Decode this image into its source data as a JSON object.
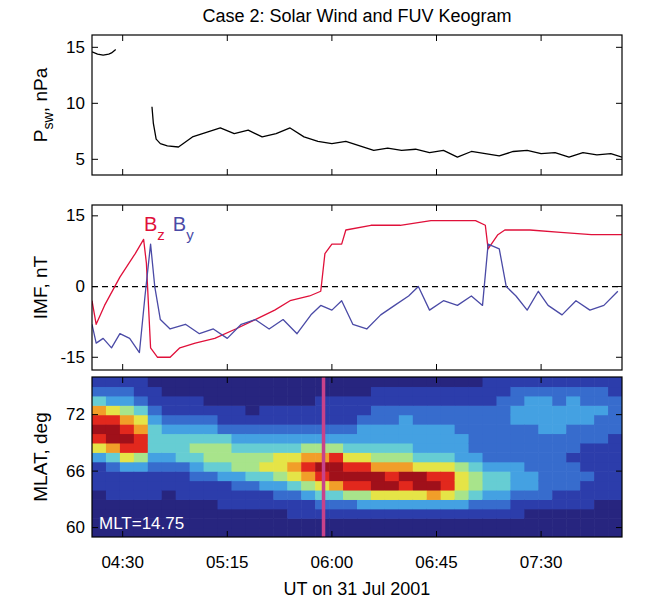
{
  "chart_data": [
    {
      "type": "line",
      "title": "Case 2: Solar Wind and FUV Keogram",
      "ylabel": "Psw, nPa",
      "xlim": [
        4.28,
        8.08
      ],
      "ylim": [
        3.6,
        16.1
      ],
      "xticks": [
        4.5,
        5.25,
        6,
        6.75,
        7.5
      ],
      "yticks": [
        5,
        10,
        15
      ],
      "tick_labels": "y",
      "series": [
        {
          "color": "#000000",
          "x": [
            4.28,
            4.32,
            4.36,
            4.4,
            4.42,
            4.45,
            4.6,
            4.71,
            4.72,
            4.74,
            4.77,
            4.82,
            4.9,
            5.0,
            5.1,
            5.2,
            5.3,
            5.4,
            5.5,
            5.6,
            5.7,
            5.8,
            5.9,
            6.0,
            6.1,
            6.2,
            6.3,
            6.4,
            6.5,
            6.6,
            6.7,
            6.8,
            6.9,
            7.0,
            7.1,
            7.2,
            7.3,
            7.4,
            7.5,
            7.6,
            7.7,
            7.8,
            7.9,
            8.0,
            8.08
          ],
          "values": [
            14.6,
            14.4,
            14.3,
            14.4,
            14.5,
            14.8,
            null,
            9.7,
            8.2,
            6.8,
            6.4,
            6.2,
            6.1,
            7.0,
            7.4,
            7.8,
            7.3,
            7.6,
            7.0,
            7.3,
            7.8,
            7.0,
            6.6,
            6.4,
            6.6,
            6.2,
            5.8,
            6.0,
            5.8,
            5.9,
            5.6,
            5.8,
            5.2,
            5.7,
            5.5,
            5.3,
            5.7,
            5.8,
            5.5,
            5.6,
            5.2,
            5.6,
            5.4,
            5.5,
            5.2
          ]
        }
      ]
    },
    {
      "type": "line",
      "ylabel": "IMF, nT",
      "xlim": [
        4.28,
        8.08
      ],
      "ylim": [
        -17.7,
        17.3
      ],
      "xticks": [
        4.5,
        5.25,
        6,
        6.75,
        7.5
      ],
      "yticks": [
        -15,
        0,
        15
      ],
      "tick_labels": "y",
      "hline": 0,
      "legend": "upper left",
      "series": [
        {
          "name": "Bz",
          "color": "#e0103a",
          "x": [
            4.28,
            4.31,
            4.37,
            4.48,
            4.59,
            4.65,
            4.67,
            4.7,
            4.75,
            4.84,
            4.91,
            5.02,
            5.16,
            5.31,
            5.45,
            5.59,
            5.7,
            5.84,
            5.92,
            5.95,
            6.0,
            6.07,
            6.1,
            6.28,
            6.49,
            6.71,
            7.03,
            7.1,
            7.12,
            7.19,
            7.24,
            7.42,
            7.64,
            7.86,
            8.08
          ],
          "values": [
            -3,
            -8,
            -4,
            2,
            7,
            10,
            5,
            -13,
            -15,
            -15,
            -13,
            -12,
            -11,
            -9,
            -7,
            -5,
            -3,
            -2,
            -1,
            7,
            9,
            9,
            12,
            13,
            13,
            14,
            14,
            13,
            8,
            11,
            12,
            12,
            11.5,
            11,
            11
          ]
        },
        {
          "name": "By",
          "color": "#4a4aa6",
          "x": [
            4.28,
            4.31,
            4.36,
            4.42,
            4.48,
            4.55,
            4.62,
            4.66,
            4.7,
            4.73,
            4.77,
            4.84,
            4.95,
            5.05,
            5.15,
            5.25,
            5.35,
            5.45,
            5.55,
            5.65,
            5.75,
            5.85,
            5.92,
            6.0,
            6.07,
            6.15,
            6.25,
            6.35,
            6.45,
            6.55,
            6.62,
            6.7,
            6.8,
            6.9,
            7.0,
            7.08,
            7.12,
            7.2,
            7.25,
            7.32,
            7.4,
            7.48,
            7.55,
            7.65,
            7.75,
            7.85,
            7.95,
            8.05
          ],
          "values": [
            -8,
            -12,
            -11,
            -13,
            -10,
            -11,
            -14,
            -2,
            9,
            0,
            -7,
            -9,
            -8,
            -10,
            -9,
            -11,
            -8,
            -7,
            -9,
            -7,
            -10,
            -6,
            -4,
            -5,
            -3,
            -8,
            -9,
            -6,
            -4,
            -2,
            0,
            -5,
            -3,
            -4,
            -2,
            -4,
            9,
            8,
            0,
            -2,
            -5,
            -1,
            -4,
            -6,
            -3,
            -5,
            -4,
            -1
          ]
        }
      ]
    },
    {
      "type": "heatmap",
      "ylabel": "MLAT, deg",
      "xlabel": "UT on 31 Jul 2001",
      "annotation": "MLT=14.75",
      "xlim": [
        4.28,
        8.08
      ],
      "ylim": [
        59,
        76
      ],
      "xticks": [
        {
          "value": 4.5,
          "label": "04:30"
        },
        {
          "value": 5.25,
          "label": "05:15"
        },
        {
          "value": 6,
          "label": "06:00"
        },
        {
          "value": 6.75,
          "label": "06:45"
        },
        {
          "value": 7.5,
          "label": "07:30"
        }
      ],
      "yticks": [
        60,
        66,
        72
      ],
      "vline": 5.94,
      "color_range": [
        0,
        9
      ],
      "x_edges": [
        4.28,
        4.38,
        4.48,
        4.58,
        4.68,
        4.78,
        4.88,
        4.98,
        5.08,
        5.18,
        5.28,
        5.38,
        5.48,
        5.58,
        5.68,
        5.78,
        5.88,
        5.98,
        6.08,
        6.18,
        6.28,
        6.38,
        6.48,
        6.58,
        6.68,
        6.78,
        6.88,
        6.98,
        7.08,
        7.18,
        7.28,
        7.38,
        7.48,
        7.58,
        7.68,
        7.78,
        7.88,
        7.98,
        8.08
      ],
      "y_edges": [
        59,
        60,
        61,
        62,
        63,
        64,
        65,
        66,
        67,
        68,
        69,
        70,
        71,
        72,
        73,
        74,
        75,
        76
      ],
      "cells": [
        [
          0,
          0,
          0,
          0,
          0,
          1,
          1,
          1,
          3,
          6,
          8,
          9,
          8,
          7,
          4,
          2,
          1
        ],
        [
          0,
          0,
          0,
          0,
          1,
          1,
          1,
          2,
          4,
          7,
          9,
          9,
          8,
          6,
          3,
          2,
          1
        ],
        [
          0,
          0,
          0,
          0,
          1,
          1,
          1,
          3,
          6,
          8,
          9,
          8,
          7,
          5,
          3,
          2,
          1
        ],
        [
          0,
          0,
          0,
          0,
          1,
          1,
          1,
          3,
          5,
          8,
          8,
          7,
          6,
          4,
          2,
          1,
          1
        ],
        [
          0,
          0,
          0,
          0,
          1,
          1,
          1,
          2,
          3,
          4,
          4,
          4,
          3,
          2,
          1,
          1,
          0
        ],
        [
          0,
          0,
          0,
          0,
          0,
          1,
          1,
          2,
          3,
          4,
          4,
          3,
          2,
          1,
          1,
          0,
          0
        ],
        [
          0,
          0,
          0,
          0,
          1,
          1,
          1,
          2,
          4,
          4,
          4,
          3,
          2,
          1,
          1,
          0,
          0
        ],
        [
          0,
          0,
          0,
          0,
          1,
          1,
          2,
          3,
          4,
          5,
          4,
          3,
          2,
          1,
          1,
          0,
          0
        ],
        [
          0,
          0,
          0,
          0,
          1,
          1,
          2,
          4,
          5,
          5,
          4,
          3,
          2,
          1,
          0,
          0,
          0
        ],
        [
          0,
          0,
          0,
          1,
          1,
          1,
          3,
          4,
          5,
          5,
          4,
          2,
          1,
          1,
          0,
          0,
          0
        ],
        [
          0,
          0,
          0,
          1,
          1,
          2,
          3,
          5,
          5,
          4,
          3,
          2,
          1,
          1,
          0,
          0,
          0
        ],
        [
          0,
          0,
          0,
          1,
          1,
          2,
          4,
          5,
          5,
          4,
          3,
          2,
          1,
          0,
          0,
          0,
          0
        ],
        [
          0,
          0,
          0,
          1,
          1,
          3,
          4,
          6,
          5,
          4,
          3,
          2,
          1,
          1,
          0,
          0,
          0
        ],
        [
          0,
          0,
          0,
          1,
          2,
          3,
          5,
          6,
          6,
          4,
          3,
          2,
          1,
          1,
          0,
          0,
          0
        ],
        [
          0,
          0,
          1,
          1,
          2,
          4,
          6,
          7,
          6,
          4,
          3,
          2,
          1,
          1,
          0,
          0,
          0
        ],
        [
          0,
          0,
          1,
          1,
          3,
          5,
          7,
          8,
          7,
          5,
          3,
          2,
          1,
          1,
          0,
          0,
          0
        ],
        [
          0,
          0,
          1,
          2,
          4,
          6,
          8,
          9,
          7,
          5,
          3,
          2,
          1,
          1,
          1,
          0,
          0
        ],
        [
          0,
          0,
          1,
          2,
          4,
          7,
          9,
          9,
          8,
          5,
          3,
          2,
          1,
          1,
          1,
          0,
          0
        ],
        [
          0,
          0,
          1,
          2,
          5,
          8,
          9,
          8,
          6,
          4,
          3,
          2,
          1,
          1,
          1,
          0,
          0
        ],
        [
          0,
          0,
          1,
          3,
          5,
          8,
          9,
          8,
          6,
          4,
          3,
          3,
          2,
          1,
          1,
          0,
          0
        ],
        [
          0,
          0,
          1,
          3,
          6,
          9,
          9,
          7,
          5,
          4,
          3,
          3,
          2,
          2,
          1,
          1,
          0
        ],
        [
          0,
          0,
          1,
          3,
          6,
          9,
          8,
          7,
          5,
          4,
          3,
          3,
          2,
          2,
          1,
          1,
          0
        ],
        [
          0,
          0,
          1,
          3,
          6,
          8,
          9,
          7,
          5,
          4,
          3,
          3,
          3,
          2,
          1,
          1,
          0
        ],
        [
          0,
          0,
          1,
          3,
          6,
          9,
          9,
          6,
          4,
          3,
          3,
          3,
          2,
          2,
          1,
          1,
          0
        ],
        [
          0,
          0,
          1,
          3,
          7,
          9,
          8,
          6,
          4,
          3,
          3,
          3,
          2,
          2,
          1,
          1,
          0
        ],
        [
          0,
          0,
          1,
          3,
          6,
          8,
          8,
          6,
          4,
          3,
          3,
          3,
          2,
          2,
          1,
          1,
          0
        ],
        [
          0,
          0,
          1,
          3,
          5,
          6,
          6,
          5,
          3,
          3,
          3,
          2,
          2,
          2,
          1,
          1,
          0
        ],
        [
          0,
          0,
          1,
          2,
          4,
          5,
          5,
          4,
          3,
          2,
          2,
          2,
          2,
          2,
          1,
          1,
          0
        ],
        [
          0,
          0,
          1,
          2,
          3,
          4,
          4,
          3,
          2,
          2,
          2,
          2,
          2,
          2,
          1,
          1,
          1
        ],
        [
          0,
          0,
          1,
          2,
          3,
          4,
          4,
          3,
          2,
          2,
          2,
          2,
          2,
          2,
          2,
          1,
          1
        ],
        [
          0,
          0,
          1,
          1,
          2,
          3,
          3,
          3,
          2,
          2,
          2,
          2,
          3,
          3,
          2,
          2,
          1
        ],
        [
          0,
          0,
          0,
          1,
          2,
          3,
          3,
          2,
          2,
          2,
          2,
          2,
          3,
          3,
          3,
          2,
          1
        ],
        [
          0,
          0,
          0,
          1,
          2,
          2,
          2,
          2,
          2,
          2,
          2,
          3,
          3,
          3,
          3,
          2,
          1
        ],
        [
          0,
          0,
          0,
          1,
          1,
          2,
          2,
          2,
          2,
          2,
          2,
          3,
          3,
          3,
          2,
          2,
          1
        ],
        [
          0,
          0,
          0,
          1,
          1,
          2,
          2,
          2,
          1,
          2,
          2,
          2,
          3,
          3,
          3,
          2,
          1
        ],
        [
          0,
          0,
          0,
          1,
          1,
          1,
          2,
          1,
          1,
          1,
          2,
          2,
          3,
          3,
          2,
          2,
          1
        ],
        [
          0,
          0,
          0,
          0,
          1,
          1,
          1,
          1,
          1,
          1,
          2,
          2,
          2,
          3,
          2,
          2,
          1
        ],
        [
          0,
          0,
          0,
          0,
          1,
          1,
          1,
          1,
          1,
          1,
          1,
          2,
          2,
          2,
          2,
          1,
          1
        ]
      ]
    }
  ]
}
